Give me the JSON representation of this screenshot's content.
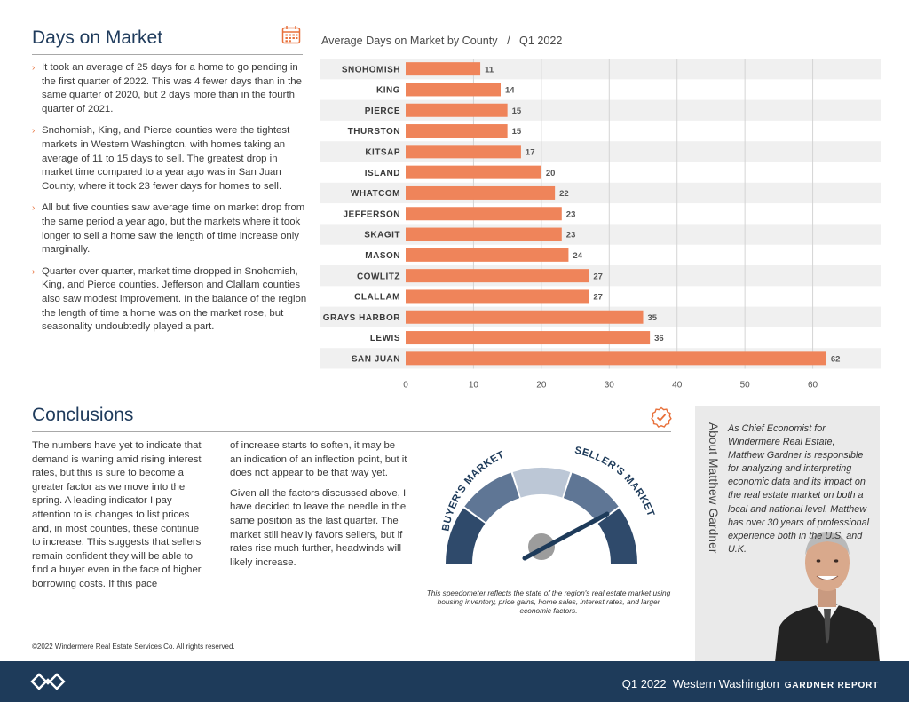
{
  "days_section": {
    "title": "Days on Market",
    "icon": "calendar-icon",
    "bullets": [
      "It took an average of 25 days for a home to go pending in the first quarter of 2022. This was 4 fewer days than in the same quarter of 2020, but 2 days more than in the fourth quarter of 2021.",
      "Snohomish, King, and Pierce counties were the tightest markets in Western Washington, with homes taking an average of 11 to 15 days to sell. The greatest drop in market time compared to a year ago was in San Juan County, where it took 23 fewer days for homes to sell.",
      "All but five counties saw average time on market drop from the same period a year ago, but the markets where it took longer to sell a home saw the length of time increase only marginally.",
      "Quarter over quarter, market time dropped in Snohomish, King, and Pierce counties. Jefferson and Clallam counties also saw modest improvement. In the balance of the region the length of time a home was on the market rose, but seasonality undoubtedly played a part."
    ]
  },
  "chart_data": {
    "type": "bar",
    "orientation": "horizontal",
    "title": "Average Days on Market by County   /   Q1 2022",
    "categories": [
      "SNOHOMISH",
      "KING",
      "PIERCE",
      "THURSTON",
      "KITSAP",
      "ISLAND",
      "WHATCOM",
      "JEFFERSON",
      "SKAGIT",
      "MASON",
      "COWLITZ",
      "CLALLAM",
      "GRAYS HARBOR",
      "LEWIS",
      "SAN JUAN"
    ],
    "values": [
      11,
      14,
      15,
      15,
      17,
      20,
      22,
      23,
      23,
      24,
      27,
      27,
      35,
      36,
      62
    ],
    "xticks": [
      0,
      10,
      20,
      30,
      40,
      50,
      60
    ],
    "xlim": [
      0,
      70
    ],
    "bar_color": "#ef845a",
    "stripe_color": "#f0f0f0",
    "grid": true,
    "data_labels": true
  },
  "conclusions": {
    "title": "Conclusions",
    "icon": "checkmark-badge-icon",
    "col1": "The numbers have yet to indicate that demand is waning amid rising interest rates, but this is sure to become a greater factor as we move into the spring. A leading indicator I pay attention to is changes to list prices and, in most counties, these continue to increase. This suggests that sellers remain confident they will be able to find a buyer even in the face of higher borrowing costs. If this pace",
    "col2_p1": "of increase starts to soften, it may be an indication of an inflection point, but it does not appear to be that way yet.",
    "col2_p2": "Given all the factors discussed above, I have decided to leave the needle in the same position as the last quarter. The market still heavily favors sellers, but if rates rise much further, headwinds will likely increase.",
    "gauge": {
      "left_label": "BUYER'S MARKET",
      "right_label": "SELLER'S MARKET",
      "colors": [
        "#2f4a6b",
        "#5f7695",
        "#bcc7d6",
        "#5f7695",
        "#2f4a6b"
      ],
      "needle_level": 0.83
    },
    "caption": "This speedometer reflects the state of the region's real estate market using housing inventory, price gains, home sales, interest rates, and larger economic factors."
  },
  "about": {
    "title": "About Matthew Gardner",
    "text": "As Chief Economist for Windermere Real Estate, Matthew Gardner is responsible for analyzing and interpreting economic data and its impact on the real estate market on both a local and national level. Matthew has over 30 years of professional experience both in the U.S. and U.K."
  },
  "copyright": "©2022 Windermere Real Estate Services Co. All rights reserved.",
  "footer": {
    "logo": "windermere-logo-icon",
    "text": "Q1 2022  Western Washington",
    "tag": "GARDNER REPORT"
  }
}
